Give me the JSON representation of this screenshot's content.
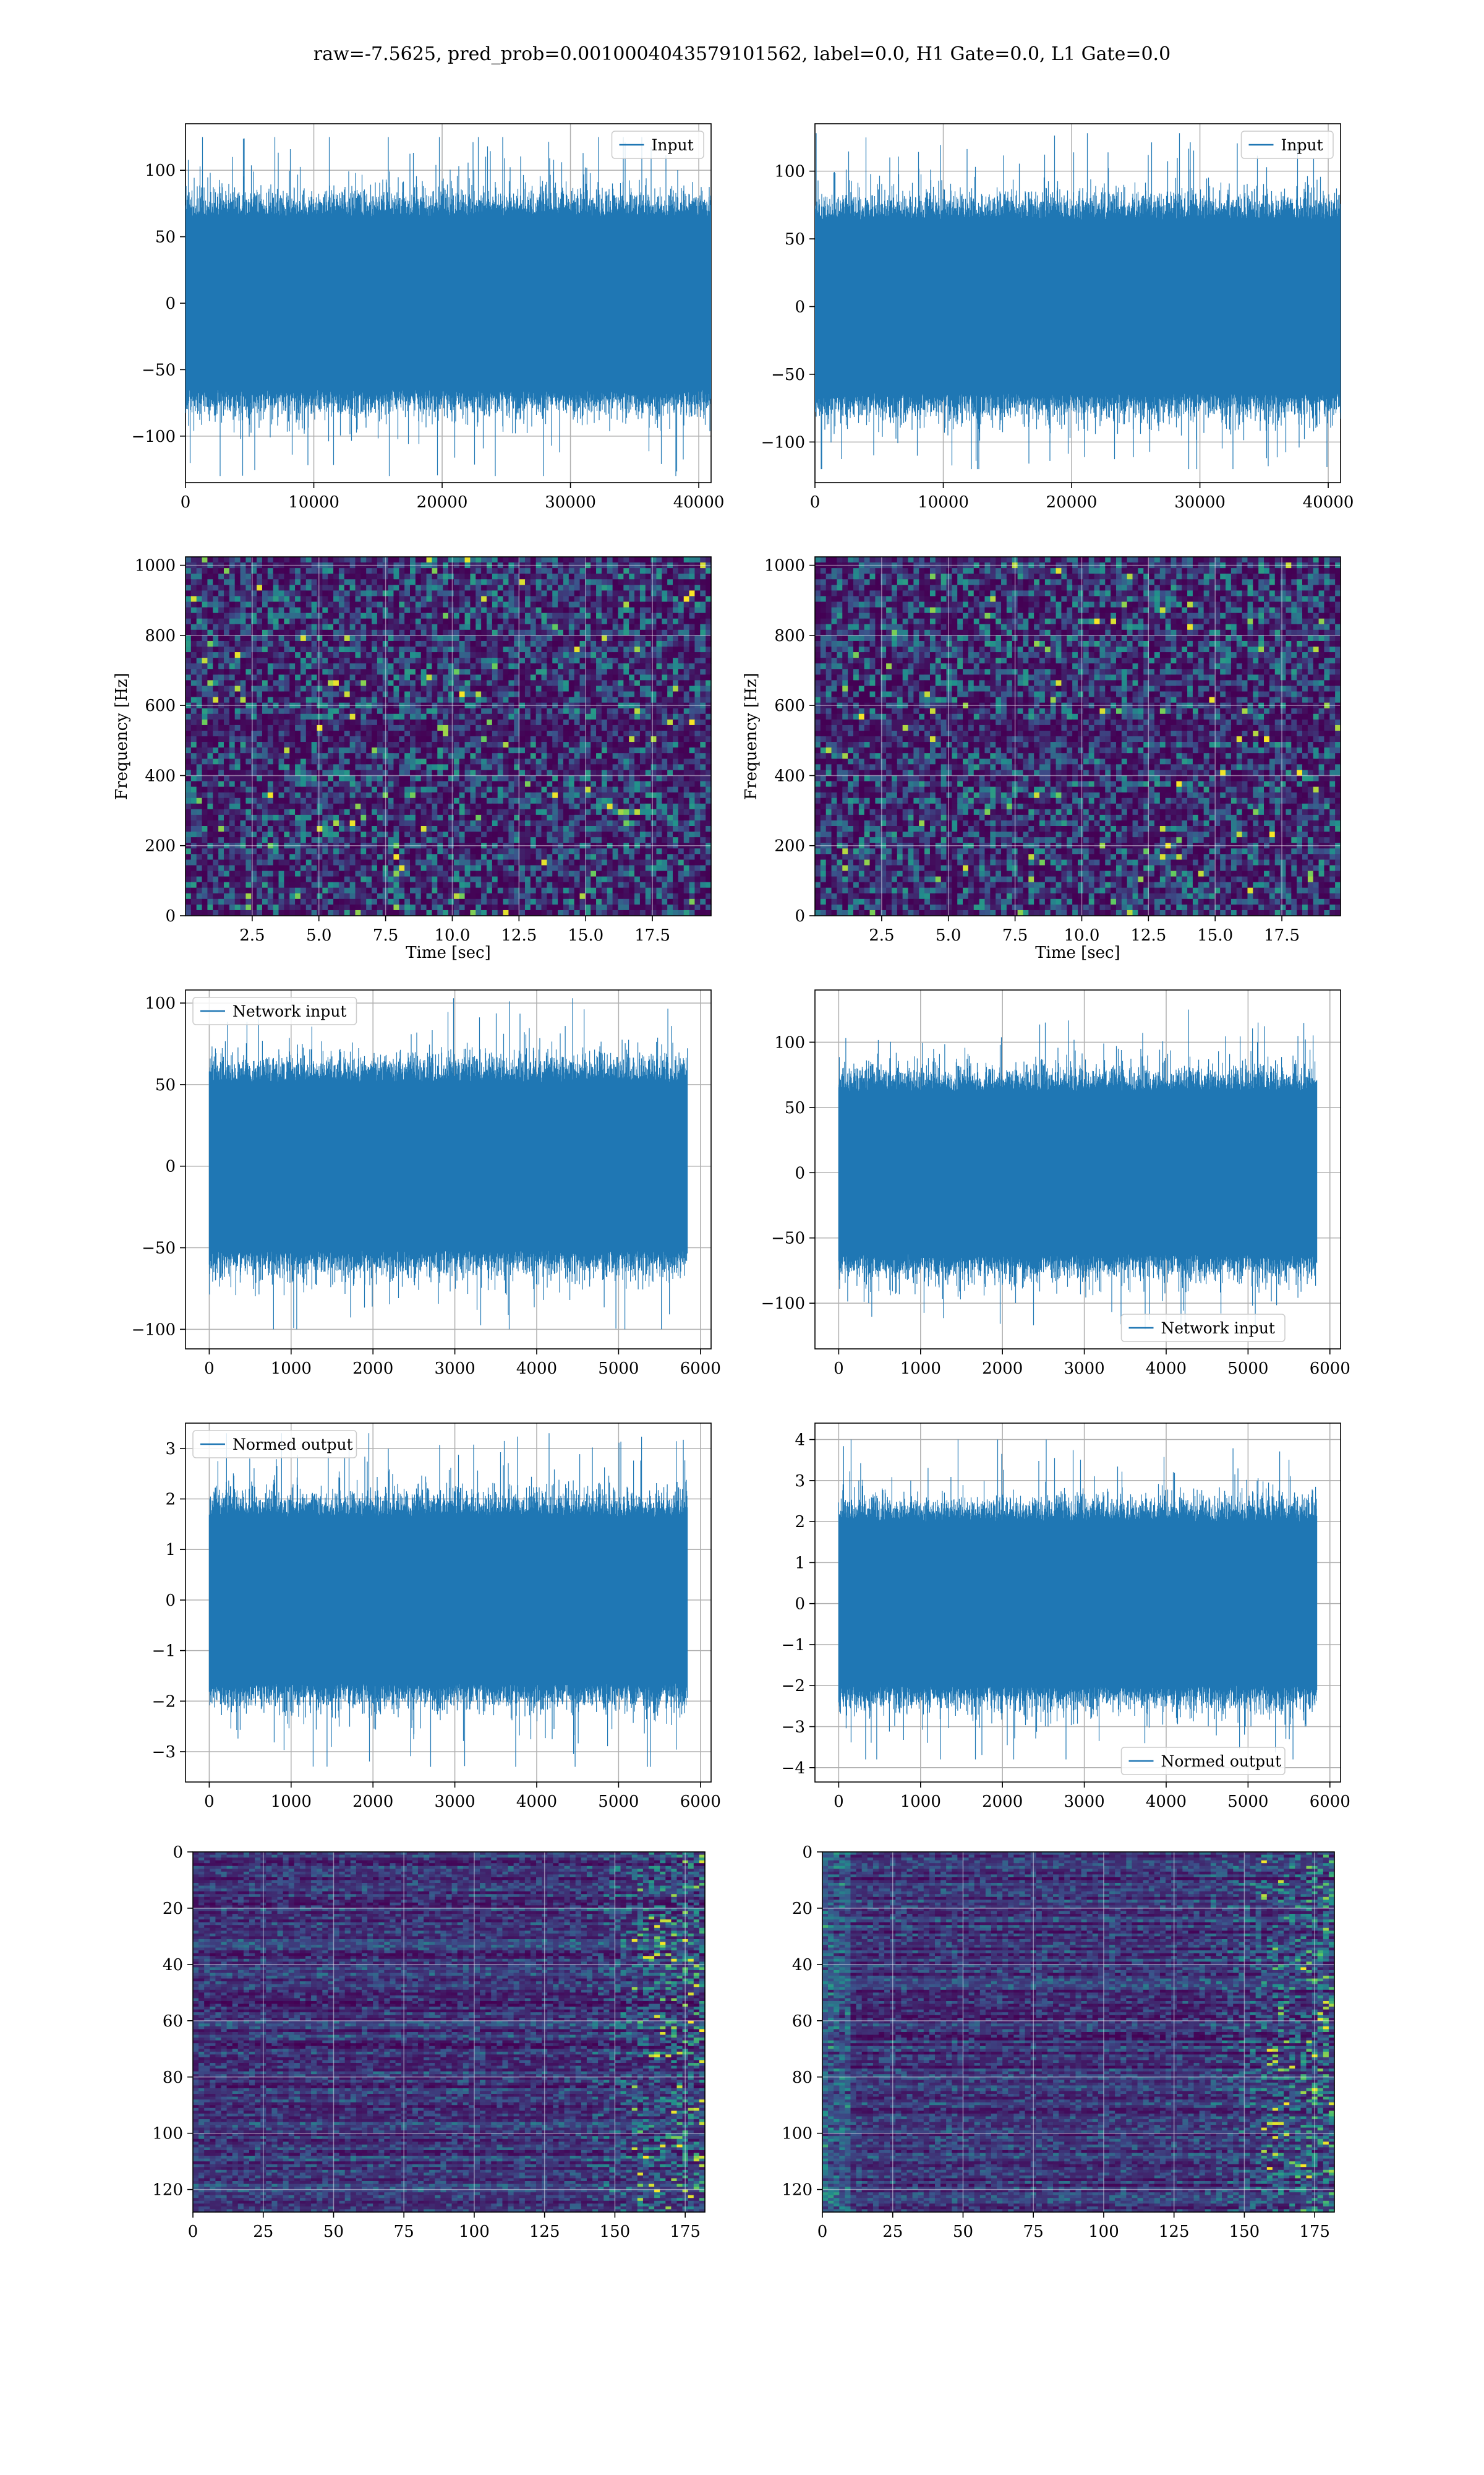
{
  "title": "raw=-7.5625, pred_prob=0.0010004043579101562, label=0.0, H1 Gate=0.0, L1 Gate=0.0",
  "colors": {
    "line": "#1f77b4",
    "grid": "#b0b0b0",
    "axes": "#000000",
    "viridis_low": "#440154",
    "viridis_mid": "#21918c",
    "viridis_high": "#fde725"
  },
  "chart_data": [
    {
      "type": "line",
      "panel": "row1-left",
      "title": "",
      "xlabel": "",
      "ylabel": "",
      "series": [
        {
          "name": "Input",
          "n_samples": 40960,
          "amplitude_envelope": [
            -130,
            125
          ]
        }
      ],
      "xlim": [
        0,
        40960
      ],
      "ylim": [
        -135,
        135
      ],
      "xticks": [
        0,
        10000,
        20000,
        30000,
        40000
      ],
      "xtick_labels": [
        "0",
        "10000",
        "20000",
        "30000",
        "40000"
      ],
      "yticks": [
        -100,
        -50,
        0,
        50,
        100
      ],
      "ytick_labels": [
        "−100",
        "−50",
        "0",
        "50",
        "100"
      ],
      "legend": "top-right",
      "grid": true
    },
    {
      "type": "line",
      "panel": "row1-right",
      "title": "",
      "xlabel": "",
      "ylabel": "",
      "series": [
        {
          "name": "Input",
          "n_samples": 40960,
          "amplitude_envelope": [
            -120,
            128
          ]
        }
      ],
      "xlim": [
        0,
        40960
      ],
      "ylim": [
        -130,
        135
      ],
      "xticks": [
        0,
        10000,
        20000,
        30000,
        40000
      ],
      "xtick_labels": [
        "0",
        "10000",
        "20000",
        "30000",
        "40000"
      ],
      "yticks": [
        -100,
        -50,
        0,
        50,
        100
      ],
      "ytick_labels": [
        "−100",
        "−50",
        "0",
        "50",
        "100"
      ],
      "legend": "top-right",
      "grid": true
    },
    {
      "type": "heatmap",
      "panel": "row2-left",
      "title": "",
      "xlabel": "Time [sec]",
      "ylabel": "Frequency [Hz]",
      "colormap": "viridis",
      "xlim": [
        0,
        19.7
      ],
      "ylim": [
        0,
        1024
      ],
      "xticks": [
        2.5,
        5.0,
        7.5,
        10.0,
        12.5,
        15.0,
        17.5
      ],
      "xtick_labels": [
        "2.5",
        "5.0",
        "7.5",
        "10.0",
        "12.5",
        "15.0",
        "17.5"
      ],
      "yticks": [
        0,
        200,
        400,
        600,
        800,
        1000
      ],
      "ytick_labels": [
        "0",
        "200",
        "400",
        "600",
        "800",
        "1000"
      ],
      "grid": true
    },
    {
      "type": "heatmap",
      "panel": "row2-right",
      "title": "",
      "xlabel": "Time [sec]",
      "ylabel": "Frequency [Hz]",
      "colormap": "viridis",
      "xlim": [
        0,
        19.7
      ],
      "ylim": [
        0,
        1024
      ],
      "xticks": [
        2.5,
        5.0,
        7.5,
        10.0,
        12.5,
        15.0,
        17.5
      ],
      "xtick_labels": [
        "2.5",
        "5.0",
        "7.5",
        "10.0",
        "12.5",
        "15.0",
        "17.5"
      ],
      "yticks": [
        0,
        200,
        400,
        600,
        800,
        1000
      ],
      "ytick_labels": [
        "0",
        "200",
        "400",
        "600",
        "800",
        "1000"
      ],
      "grid": true
    },
    {
      "type": "line",
      "panel": "row3-left",
      "title": "",
      "xlabel": "",
      "ylabel": "",
      "series": [
        {
          "name": "Network input",
          "n_samples": 5840,
          "amplitude_envelope": [
            -100,
            103
          ]
        }
      ],
      "xlim": [
        -290,
        6130
      ],
      "ylim": [
        -112,
        108
      ],
      "xticks": [
        0,
        1000,
        2000,
        3000,
        4000,
        5000,
        6000
      ],
      "xtick_labels": [
        "0",
        "1000",
        "2000",
        "3000",
        "4000",
        "5000",
        "6000"
      ],
      "yticks": [
        -100,
        -50,
        0,
        50,
        100
      ],
      "ytick_labels": [
        "−100",
        "−50",
        "0",
        "50",
        "100"
      ],
      "legend": "top-left",
      "grid": true
    },
    {
      "type": "line",
      "panel": "row3-right",
      "title": "",
      "xlabel": "",
      "ylabel": "",
      "series": [
        {
          "name": "Network input",
          "n_samples": 5840,
          "amplitude_envelope": [
            -120,
            125
          ]
        }
      ],
      "xlim": [
        -290,
        6130
      ],
      "ylim": [
        -135,
        140
      ],
      "xticks": [
        0,
        1000,
        2000,
        3000,
        4000,
        5000,
        6000
      ],
      "xtick_labels": [
        "0",
        "1000",
        "2000",
        "3000",
        "4000",
        "5000",
        "6000"
      ],
      "yticks": [
        -100,
        -50,
        0,
        50,
        100
      ],
      "ytick_labels": [
        "−100",
        "−50",
        "0",
        "50",
        "100"
      ],
      "legend": "bottom-right",
      "grid": true
    },
    {
      "type": "line",
      "panel": "row4-left",
      "title": "",
      "xlabel": "",
      "ylabel": "",
      "series": [
        {
          "name": "Normed output",
          "n_samples": 5840,
          "amplitude_envelope": [
            -3.3,
            3.3
          ]
        }
      ],
      "xlim": [
        -290,
        6130
      ],
      "ylim": [
        -3.6,
        3.5
      ],
      "xticks": [
        0,
        1000,
        2000,
        3000,
        4000,
        5000,
        6000
      ],
      "xtick_labels": [
        "0",
        "1000",
        "2000",
        "3000",
        "4000",
        "5000",
        "6000"
      ],
      "yticks": [
        -3,
        -2,
        -1,
        0,
        1,
        2,
        3
      ],
      "ytick_labels": [
        "−3",
        "−2",
        "−1",
        "0",
        "1",
        "2",
        "3"
      ],
      "legend": "top-left",
      "grid": true
    },
    {
      "type": "line",
      "panel": "row4-right",
      "title": "",
      "xlabel": "",
      "ylabel": "",
      "series": [
        {
          "name": "Normed output",
          "n_samples": 5840,
          "amplitude_envelope": [
            -3.8,
            4.0
          ]
        }
      ],
      "xlim": [
        -290,
        6130
      ],
      "ylim": [
        -4.35,
        4.4
      ],
      "xticks": [
        0,
        1000,
        2000,
        3000,
        4000,
        5000,
        6000
      ],
      "xtick_labels": [
        "0",
        "1000",
        "2000",
        "3000",
        "4000",
        "5000",
        "6000"
      ],
      "yticks": [
        -4,
        -3,
        -2,
        -1,
        0,
        1,
        2,
        3,
        4
      ],
      "ytick_labels": [
        "−4",
        "−3",
        "−2",
        "−1",
        "0",
        "1",
        "2",
        "3",
        "4"
      ],
      "legend": "bottom-right",
      "grid": true
    },
    {
      "type": "heatmap",
      "panel": "row5-left",
      "title": "",
      "xlabel": "",
      "ylabel": "",
      "colormap": "viridis",
      "rows": 128,
      "cols": 182,
      "xlim": [
        0,
        182
      ],
      "ylim": [
        128,
        0
      ],
      "xticks": [
        0,
        25,
        50,
        75,
        100,
        125,
        150,
        175
      ],
      "xtick_labels": [
        "0",
        "25",
        "50",
        "75",
        "100",
        "125",
        "150",
        "175"
      ],
      "yticks": [
        0,
        20,
        40,
        60,
        80,
        100,
        120
      ],
      "ytick_labels": [
        "0",
        "20",
        "40",
        "60",
        "80",
        "100",
        "120"
      ],
      "grid": true
    },
    {
      "type": "heatmap",
      "panel": "row5-right",
      "title": "",
      "xlabel": "",
      "ylabel": "",
      "colormap": "viridis",
      "rows": 128,
      "cols": 182,
      "xlim": [
        0,
        182
      ],
      "ylim": [
        128,
        0
      ],
      "xticks": [
        0,
        25,
        50,
        75,
        100,
        125,
        150,
        175
      ],
      "xtick_labels": [
        "0",
        "25",
        "50",
        "75",
        "100",
        "125",
        "150",
        "175"
      ],
      "yticks": [
        0,
        20,
        40,
        60,
        80,
        100,
        120
      ],
      "ytick_labels": [
        "0",
        "20",
        "40",
        "60",
        "80",
        "100",
        "120"
      ],
      "grid": true
    }
  ]
}
